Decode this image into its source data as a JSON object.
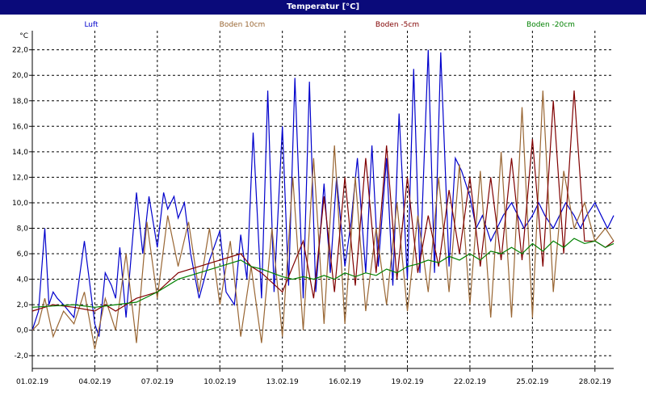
{
  "window": {
    "title": "Temperatur [°C]"
  },
  "chart_data": {
    "type": "line",
    "title": "Temperatur [°C]",
    "ylabel": "°C",
    "xlabel": "",
    "ylim": [
      -3,
      23.5
    ],
    "xlim": [
      0,
      27.9
    ],
    "grid": true,
    "legend_position": "top",
    "y_ticks": [
      "-2,0",
      "0,0",
      "2,0",
      "4,0",
      "6,0",
      "8,0",
      "10,0",
      "12,0",
      "14,0",
      "16,0",
      "18,0",
      "20,0",
      "22,0"
    ],
    "y_tick_values": [
      -2,
      0,
      2,
      4,
      6,
      8,
      10,
      12,
      14,
      16,
      18,
      20,
      22
    ],
    "x_ticks": [
      "01.02.19",
      "04.02.19",
      "07.02.19",
      "10.02.19",
      "13.02.19",
      "16.02.19",
      "19.02.19",
      "22.02.19",
      "25.02.19",
      "28.02.19"
    ],
    "x_tick_values": [
      0,
      3,
      6,
      9,
      12,
      15,
      18,
      21,
      24,
      27
    ],
    "x_unit": "days since 01.02.19",
    "colors": {
      "Luft": "#0000cc",
      "Boden 10cm": "#996633",
      "Boden -5cm": "#800000",
      "Boden -20cm": "#008000"
    },
    "series": [
      {
        "name": "Luft",
        "x": [
          0,
          0.3,
          0.6,
          0.8,
          1,
          1.2,
          1.5,
          2,
          2.5,
          3,
          3.2,
          3.5,
          3.8,
          4,
          4.2,
          4.5,
          5,
          5.3,
          5.6,
          6,
          6.3,
          6.5,
          6.8,
          7,
          7.3,
          7.6,
          8,
          8.5,
          9,
          9.3,
          9.7,
          10,
          10.3,
          10.6,
          11,
          11.3,
          11.6,
          12,
          12.3,
          12.6,
          13,
          13.3,
          13.6,
          14,
          14.3,
          14.6,
          15,
          15.3,
          15.6,
          16,
          16.3,
          16.6,
          17,
          17.3,
          17.6,
          18,
          18.3,
          18.6,
          19,
          19.3,
          19.6,
          20,
          20.3,
          20.6,
          21,
          21.3,
          21.6,
          22,
          22.3,
          22.6,
          23,
          23.3,
          23.6,
          24,
          24.3,
          24.6,
          25,
          25.3,
          25.6,
          26,
          26.3,
          26.6,
          27,
          27.3,
          27.6,
          27.9
        ],
        "values": [
          0.0,
          1.5,
          8.0,
          2.0,
          3.0,
          2.5,
          2.0,
          1.0,
          7.0,
          0.5,
          -0.5,
          4.5,
          3.5,
          2.5,
          6.5,
          1.0,
          10.8,
          6.0,
          10.5,
          6.5,
          10.8,
          9.5,
          10.5,
          8.8,
          10.0,
          6.0,
          2.5,
          5.5,
          7.8,
          3.0,
          2.0,
          7.5,
          4.0,
          15.5,
          2.5,
          18.8,
          3.0,
          16.0,
          3.5,
          19.8,
          2.5,
          19.5,
          3.0,
          11.5,
          4.5,
          12.0,
          5.0,
          8.5,
          13.5,
          4.5,
          14.5,
          5.0,
          13.5,
          3.5,
          17.0,
          4.0,
          20.5,
          4.5,
          22.0,
          4.5,
          21.8,
          5.0,
          13.5,
          12.5,
          10.5,
          8,
          9,
          7,
          8,
          9,
          10,
          9,
          8,
          9,
          10,
          9,
          8,
          9,
          10,
          9,
          8,
          9,
          10,
          9,
          8,
          9
        ]
      },
      {
        "name": "Boden 10cm",
        "x": [
          0,
          0.3,
          0.6,
          1,
          1.5,
          2,
          2.5,
          3,
          3.5,
          4,
          4.5,
          5,
          5.5,
          6,
          6.5,
          7,
          7.5,
          8,
          8.5,
          9,
          9.5,
          10,
          10.5,
          11,
          11.5,
          12,
          12.5,
          13,
          13.5,
          14,
          14.5,
          15,
          15.5,
          16,
          16.5,
          17,
          17.5,
          18,
          18.5,
          19,
          19.5,
          20,
          20.5,
          21,
          21.5,
          22,
          22.5,
          23,
          23.5,
          24,
          24.5,
          25,
          25.5,
          26,
          26.5,
          27,
          27.5,
          27.9
        ],
        "values": [
          0.0,
          0.5,
          2.5,
          -0.5,
          1.5,
          0.5,
          3.0,
          -1.5,
          2.5,
          0.0,
          6.0,
          -1.0,
          8.5,
          2.5,
          9.0,
          5.0,
          8.5,
          3.0,
          8.0,
          2.0,
          7.0,
          -0.5,
          5.0,
          -1.0,
          8.0,
          -0.5,
          12.0,
          0.0,
          13.5,
          0.5,
          14.5,
          0.5,
          12.0,
          1.5,
          8.0,
          2.0,
          10.0,
          1.5,
          9.0,
          3.0,
          12.0,
          3.0,
          13.0,
          2.0,
          12.5,
          1.0,
          14.0,
          1.0,
          17.5,
          1.0,
          18.8,
          3.0,
          12.5,
          8.0,
          10,
          7,
          8,
          7
        ]
      },
      {
        "name": "Boden -5cm",
        "x": [
          0,
          1,
          2,
          3,
          3.5,
          4,
          5,
          6,
          7,
          8,
          9,
          10,
          10.5,
          11,
          12,
          13,
          13.5,
          14,
          14.5,
          15,
          15.5,
          16,
          16.5,
          17,
          17.5,
          18,
          18.5,
          19,
          19.5,
          20,
          20.5,
          21,
          21.5,
          22,
          22.5,
          23,
          23.5,
          24,
          24.5,
          25,
          25.5,
          26,
          26.5,
          27,
          27.5,
          27.9
        ],
        "values": [
          1.5,
          2.0,
          1.8,
          1.5,
          2.0,
          1.5,
          2.5,
          3.0,
          4.5,
          5.0,
          5.5,
          6.0,
          5.0,
          4.5,
          3.0,
          7.0,
          2.5,
          10.5,
          3.0,
          12.0,
          3.5,
          13.5,
          4.5,
          14.5,
          4.0,
          12.0,
          4.5,
          9.0,
          5.0,
          11.0,
          6.0,
          12.0,
          5.0,
          12.0,
          5.5,
          13.5,
          5.5,
          15.0,
          5.0,
          18.0,
          6.0,
          18.8,
          7.0,
          7.0,
          6.5,
          7.0
        ]
      },
      {
        "name": "Boden -20cm",
        "x": [
          0,
          1,
          2,
          3,
          4,
          5,
          6,
          7,
          8,
          9,
          10,
          10.5,
          11,
          11.5,
          12,
          12.5,
          13,
          13.5,
          14,
          14.5,
          15,
          15.5,
          16,
          16.5,
          17,
          17.5,
          18,
          18.5,
          19,
          19.5,
          20,
          20.5,
          21,
          21.5,
          22,
          22.5,
          23,
          23.5,
          24,
          24.5,
          25,
          25.5,
          26,
          26.5,
          27,
          27.5,
          27.9
        ],
        "values": [
          1.8,
          1.9,
          2.0,
          1.8,
          2.0,
          2.2,
          3.0,
          4.0,
          4.5,
          5.0,
          5.5,
          5.0,
          4.8,
          4.5,
          4.2,
          4.0,
          4.2,
          4.0,
          4.3,
          4.0,
          4.5,
          4.2,
          4.5,
          4.3,
          4.8,
          4.5,
          5.0,
          5.2,
          5.5,
          5.3,
          5.8,
          5.5,
          6.0,
          5.5,
          6.2,
          6.0,
          6.5,
          6.0,
          6.8,
          6.2,
          7.0,
          6.5,
          7.2,
          6.8,
          7.0,
          6.5,
          6.8
        ]
      }
    ]
  }
}
